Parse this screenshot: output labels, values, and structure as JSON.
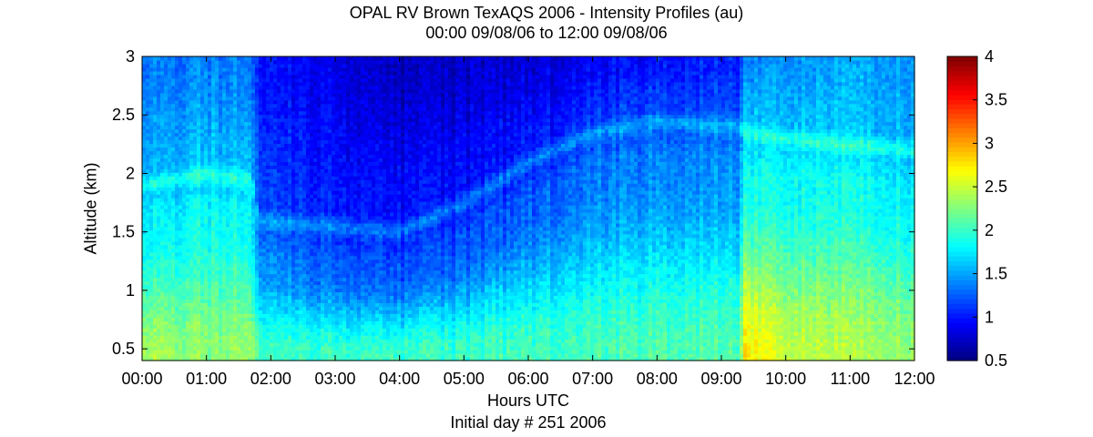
{
  "chart_data": {
    "type": "heatmap",
    "title": "OPAL RV Brown TexAQS 2006 - Intensity Profiles (au)",
    "subtitle": "00:00 09/08/06 to 12:00 09/08/06",
    "xlabel": "Hours UTC",
    "xlabel_secondary": "Initial day # 251  2006",
    "ylabel": "Altitude (km)",
    "x_range_hours": [
      0,
      12
    ],
    "x_ticks": [
      "00:00",
      "01:00",
      "02:00",
      "03:00",
      "04:00",
      "05:00",
      "06:00",
      "07:00",
      "08:00",
      "09:00",
      "10:00",
      "11:00",
      "12:00"
    ],
    "y_range_km": [
      0.4,
      3.0
    ],
    "y_ticks": [
      0.5,
      1,
      1.5,
      2,
      2.5,
      3
    ],
    "y_tick_labels": [
      "0.5",
      "1",
      "1.5",
      "2",
      "2.5",
      "3"
    ],
    "colorbar": {
      "range": [
        0.5,
        4
      ],
      "ticks": [
        0.5,
        1,
        1.5,
        2,
        2.5,
        3,
        3.5,
        4
      ],
      "tick_labels": [
        "0.5",
        "1",
        "1.5",
        "2",
        "2.5",
        "3",
        "3.5",
        "4"
      ],
      "colormap": "jet"
    },
    "profile_summary": [
      {
        "hour": 0.0,
        "surface": 2.35,
        "upper": 1.5,
        "boundary_km": 1.9,
        "top": 1.3
      },
      {
        "hour": 1.0,
        "surface": 2.3,
        "upper": 1.6,
        "boundary_km": 2.0,
        "top": 1.4
      },
      {
        "hour": 1.7,
        "surface": 2.3,
        "upper": 1.55,
        "boundary_km": 1.95,
        "top": 1.3
      },
      {
        "hour": 1.8,
        "surface": 2.05,
        "upper": 1.2,
        "boundary_km": 1.6,
        "top": 1.0
      },
      {
        "hour": 3.0,
        "surface": 2.0,
        "upper": 1.0,
        "boundary_km": 1.55,
        "top": 0.85
      },
      {
        "hour": 4.0,
        "surface": 2.0,
        "upper": 0.95,
        "boundary_km": 1.5,
        "top": 0.7
      },
      {
        "hour": 5.0,
        "surface": 2.0,
        "upper": 0.95,
        "boundary_km": 1.75,
        "top": 0.75
      },
      {
        "hour": 6.0,
        "surface": 2.05,
        "upper": 1.0,
        "boundary_km": 2.1,
        "top": 0.8
      },
      {
        "hour": 7.0,
        "surface": 2.05,
        "upper": 1.1,
        "boundary_km": 2.35,
        "top": 0.9
      },
      {
        "hour": 8.0,
        "surface": 2.1,
        "upper": 1.15,
        "boundary_km": 2.45,
        "top": 1.0
      },
      {
        "hour": 9.3,
        "surface": 2.1,
        "upper": 1.2,
        "boundary_km": 2.4,
        "top": 1.05
      },
      {
        "hour": 9.35,
        "surface": 2.75,
        "upper": 1.6,
        "boundary_km": 2.35,
        "top": 1.4
      },
      {
        "hour": 10.0,
        "surface": 2.5,
        "upper": 1.6,
        "boundary_km": 2.3,
        "top": 1.45
      },
      {
        "hour": 11.0,
        "surface": 2.4,
        "upper": 1.6,
        "boundary_km": 2.25,
        "top": 1.5
      },
      {
        "hour": 12.0,
        "surface": 2.35,
        "upper": 1.55,
        "boundary_km": 2.2,
        "top": 1.5
      }
    ]
  }
}
